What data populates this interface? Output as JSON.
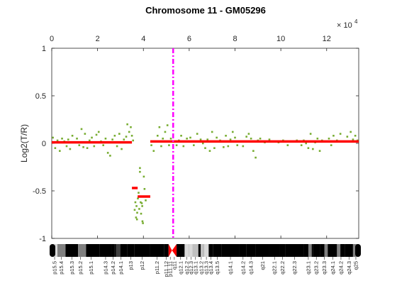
{
  "chart_data": {
    "type": "scatter",
    "title": "Chromosome 11 - GM05296",
    "ylabel": "Log2(T/R)",
    "xlabel": "",
    "x_exponent_base": "× 10",
    "x_exponent_power": "4",
    "xlim": [
      0,
      13.4
    ],
    "ylim": [
      -1,
      1
    ],
    "xticks": [
      0,
      2,
      4,
      6,
      8,
      10,
      12
    ],
    "yticks": [
      1,
      0.5,
      0,
      -0.5,
      -1
    ],
    "ytick_labels": [
      "1",
      "0.5",
      "0",
      "-0.5",
      "-1"
    ],
    "grid": false,
    "colors": {
      "points": "#77ac30",
      "segments": "#ff0000",
      "centromere": "#ff00ff"
    },
    "centromere_x": 5.3,
    "segments": [
      {
        "x0": 0.0,
        "x1": 3.5,
        "y": 0.01
      },
      {
        "x0": 3.5,
        "x1": 3.75,
        "y": -0.47
      },
      {
        "x0": 3.75,
        "x1": 4.3,
        "y": -0.56
      },
      {
        "x0": 4.3,
        "x1": 13.4,
        "y": 0.02
      }
    ],
    "points": [
      [
        0.05,
        0.06
      ],
      [
        0.15,
        -0.05
      ],
      [
        0.25,
        0.03
      ],
      [
        0.35,
        -0.08
      ],
      [
        0.45,
        0.05
      ],
      [
        0.55,
        0.02
      ],
      [
        0.65,
        -0.03
      ],
      [
        0.72,
        0.04
      ],
      [
        0.8,
        -0.06
      ],
      [
        0.9,
        0.08
      ],
      [
        1.0,
        0.01
      ],
      [
        1.1,
        0.05
      ],
      [
        1.2,
        -0.02
      ],
      [
        1.3,
        0.15
      ],
      [
        1.38,
        -0.04
      ],
      [
        1.45,
        0.1
      ],
      [
        1.55,
        -0.05
      ],
      [
        1.65,
        0.03
      ],
      [
        1.75,
        0.06
      ],
      [
        1.85,
        -0.03
      ],
      [
        1.95,
        0.09
      ],
      [
        2.05,
        0.12
      ],
      [
        2.15,
        0.02
      ],
      [
        2.25,
        -0.02
      ],
      [
        2.35,
        0.05
      ],
      [
        2.45,
        -0.1
      ],
      [
        2.55,
        -0.13
      ],
      [
        2.65,
        0.04
      ],
      [
        2.75,
        0.08
      ],
      [
        2.85,
        -0.03
      ],
      [
        2.95,
        0.1
      ],
      [
        3.05,
        -0.06
      ],
      [
        3.15,
        0.04
      ],
      [
        3.25,
        0.07
      ],
      [
        3.3,
        0.2
      ],
      [
        3.38,
        0.12
      ],
      [
        3.45,
        0.17
      ],
      [
        3.5,
        0.08
      ],
      [
        3.55,
        0.03
      ],
      [
        3.62,
        -0.7
      ],
      [
        3.65,
        -0.62
      ],
      [
        3.68,
        -0.78
      ],
      [
        3.7,
        -0.66
      ],
      [
        3.73,
        -0.73
      ],
      [
        3.76,
        -0.58
      ],
      [
        3.79,
        -0.52
      ],
      [
        3.82,
        -0.69
      ],
      [
        3.85,
        -0.3
      ],
      [
        3.88,
        -0.62
      ],
      [
        3.9,
        -0.74
      ],
      [
        3.93,
        -0.63
      ],
      [
        3.96,
        -0.82
      ],
      [
        3.98,
        -0.84
      ],
      [
        4.0,
        -0.56
      ],
      [
        4.02,
        -0.35
      ],
      [
        4.05,
        -0.48
      ],
      [
        4.1,
        -0.6
      ],
      [
        3.85,
        -0.26
      ],
      [
        3.72,
        -0.8
      ],
      [
        3.95,
        -0.66
      ],
      [
        4.35,
        -0.02
      ],
      [
        4.45,
        -0.08
      ],
      [
        4.55,
        0.02
      ],
      [
        4.62,
        0.08
      ],
      [
        4.7,
        0.17
      ],
      [
        4.78,
        -0.03
      ],
      [
        4.85,
        0.05
      ],
      [
        4.95,
        0.12
      ],
      [
        5.05,
        0.19
      ],
      [
        5.12,
        -0.02
      ],
      [
        5.2,
        0.05
      ],
      [
        5.45,
        -0.02
      ],
      [
        5.55,
        0.03
      ],
      [
        5.65,
        0.08
      ],
      [
        5.75,
        -0.03
      ],
      [
        5.9,
        0.05
      ],
      [
        6.05,
        0.06
      ],
      [
        6.2,
        -0.02
      ],
      [
        6.35,
        0.1
      ],
      [
        6.5,
        0.04
      ],
      [
        6.6,
        0.0
      ],
      [
        6.7,
        -0.05
      ],
      [
        6.8,
        0.04
      ],
      [
        6.9,
        -0.08
      ],
      [
        7.0,
        0.12
      ],
      [
        7.1,
        -0.05
      ],
      [
        7.2,
        0.06
      ],
      [
        7.35,
        0.03
      ],
      [
        7.5,
        -0.04
      ],
      [
        7.6,
        0.08
      ],
      [
        7.7,
        -0.03
      ],
      [
        7.8,
        0.04
      ],
      [
        7.9,
        0.12
      ],
      [
        8.0,
        0.06
      ],
      [
        8.1,
        -0.02
      ],
      [
        8.2,
        0.02
      ],
      [
        8.35,
        -0.03
      ],
      [
        8.5,
        0.07
      ],
      [
        8.6,
        0.1
      ],
      [
        8.7,
        0.05
      ],
      [
        8.8,
        -0.08
      ],
      [
        8.9,
        -0.15
      ],
      [
        9.0,
        0.03
      ],
      [
        9.1,
        0.05
      ],
      [
        9.3,
        0.01
      ],
      [
        9.5,
        0.04
      ],
      [
        9.7,
        0.02
      ],
      [
        9.9,
        0.01
      ],
      [
        10.1,
        0.03
      ],
      [
        10.3,
        -0.02
      ],
      [
        10.5,
        0.02
      ],
      [
        10.7,
        0.03
      ],
      [
        10.9,
        -0.02
      ],
      [
        11.0,
        0.03
      ],
      [
        11.1,
        0.0
      ],
      [
        11.2,
        -0.05
      ],
      [
        11.3,
        0.1
      ],
      [
        11.4,
        -0.06
      ],
      [
        11.5,
        0.01
      ],
      [
        11.6,
        0.05
      ],
      [
        11.7,
        -0.08
      ],
      [
        11.8,
        0.03
      ],
      [
        12.0,
        0.02
      ],
      [
        12.1,
        0.05
      ],
      [
        12.2,
        -0.02
      ],
      [
        12.3,
        0.08
      ],
      [
        12.45,
        0.03
      ],
      [
        12.6,
        0.1
      ],
      [
        12.75,
        0.02
      ],
      [
        12.9,
        0.07
      ],
      [
        13.05,
        0.12
      ],
      [
        13.15,
        0.04
      ],
      [
        13.25,
        0.08
      ],
      [
        13.35,
        0.03
      ]
    ],
    "ideogram": {
      "bands": [
        {
          "label": "p15.5",
          "x0": 0.0,
          "x1": 0.25,
          "stain": "gneg"
        },
        {
          "label": "p15.4",
          "x0": 0.25,
          "x1": 0.6,
          "stain": "gpos50"
        },
        {
          "label": "p15.3",
          "x0": 0.6,
          "x1": 1.15,
          "stain": "gpos75"
        },
        {
          "label": "p15.2",
          "x0": 1.15,
          "x1": 1.35,
          "stain": "gpos50"
        },
        {
          "label": "p15.1",
          "x0": 1.35,
          "x1": 2.1,
          "stain": "gpos100"
        },
        {
          "label": "p14.3",
          "x0": 2.1,
          "x1": 2.6,
          "stain": "gpos100"
        },
        {
          "label": "p14.2",
          "x0": 2.6,
          "x1": 2.75,
          "stain": "gpos100"
        },
        {
          "label": "p14.1",
          "x0": 2.75,
          "x1": 3.3,
          "stain": "gpos75"
        },
        {
          "label": "p13",
          "x0": 3.3,
          "x1": 3.6,
          "stain": "gpos100"
        },
        {
          "label": "p12",
          "x0": 3.6,
          "x1": 4.3,
          "stain": "gpos100"
        },
        {
          "label": "p11.2",
          "x0": 4.3,
          "x1": 4.9,
          "stain": "gpos100"
        },
        {
          "label": "p11.12",
          "x0": 4.9,
          "x1": 5.1,
          "stain": "gpos100"
        },
        {
          "label": "p11.11",
          "x0": 5.1,
          "x1": 5.25,
          "stain": "acen"
        },
        {
          "label": "q11",
          "x0": 5.25,
          "x1": 5.45,
          "stain": "acen"
        },
        {
          "label": "q12.1",
          "x0": 5.45,
          "x1": 5.8,
          "stain": "gpos100"
        },
        {
          "label": "q12.2",
          "x0": 5.8,
          "x1": 6.0,
          "stain": "gneg"
        },
        {
          "label": "q12.3",
          "x0": 6.0,
          "x1": 6.15,
          "stain": "gpos100"
        },
        {
          "label": "q13.1",
          "x0": 6.15,
          "x1": 6.4,
          "stain": "gpos25"
        },
        {
          "label": "q13.2",
          "x0": 6.4,
          "x1": 6.65,
          "stain": "gpos100"
        },
        {
          "label": "q13.3",
          "x0": 6.65,
          "x1": 6.85,
          "stain": "gneg"
        },
        {
          "label": "q13.4",
          "x0": 6.85,
          "x1": 7.05,
          "stain": "gpos100"
        },
        {
          "label": "q13.5",
          "x0": 7.05,
          "x1": 7.4,
          "stain": "gpos100"
        },
        {
          "label": "q14.1",
          "x0": 7.4,
          "x1": 8.2,
          "stain": "gpos100"
        },
        {
          "label": "q14.2",
          "x0": 8.2,
          "x1": 8.5,
          "stain": "gpos100"
        },
        {
          "label": "q14.3",
          "x0": 8.5,
          "x1": 8.9,
          "stain": "gpos100"
        },
        {
          "label": "q21",
          "x0": 8.9,
          "x1": 9.5,
          "stain": "gpos100"
        },
        {
          "label": "q22.1",
          "x0": 9.5,
          "x1": 9.95,
          "stain": "gpos100"
        },
        {
          "label": "q22.2",
          "x0": 9.95,
          "x1": 10.2,
          "stain": "gpos100"
        },
        {
          "label": "q22.3",
          "x0": 10.2,
          "x1": 11.0,
          "stain": "gpos100"
        },
        {
          "label": "q23.1",
          "x0": 11.0,
          "x1": 11.4,
          "stain": "gpos75"
        },
        {
          "label": "q23.2",
          "x0": 11.4,
          "x1": 11.7,
          "stain": "gpos100"
        },
        {
          "label": "q23.3",
          "x0": 11.7,
          "x1": 12.1,
          "stain": "gpos75"
        },
        {
          "label": "q24.1",
          "x0": 12.1,
          "x1": 12.45,
          "stain": "gpos100"
        },
        {
          "label": "q24.2",
          "x0": 12.45,
          "x1": 12.8,
          "stain": "gpos75"
        },
        {
          "label": "q24.3",
          "x0": 12.8,
          "x1": 13.15,
          "stain": "gpos100"
        },
        {
          "label": "q25",
          "x0": 13.15,
          "x1": 13.4,
          "stain": "gpos50"
        }
      ]
    }
  }
}
